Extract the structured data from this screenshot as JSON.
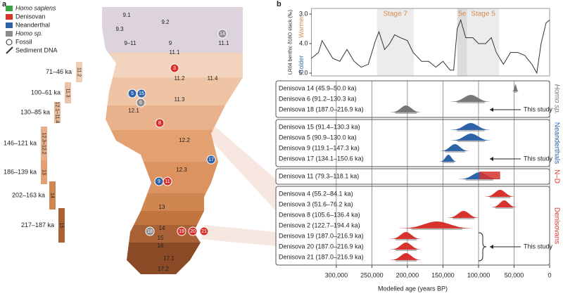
{
  "panel_a": {
    "label": "a",
    "legend": [
      {
        "label": "Homo sapiens",
        "color": "#3aa542"
      },
      {
        "label": "Denisovan",
        "color": "#d7322d"
      },
      {
        "label": "Neanderthal",
        "color": "#2e63a8"
      },
      {
        "label": "Homo sp.",
        "color": "#8c8c8c"
      },
      {
        "label": "Fossil"
      },
      {
        "label": "Sediment DNA"
      }
    ],
    "age_ranges": [
      {
        "age": "71–46 ka",
        "layer": "11.2",
        "color": "#f0cdb5"
      },
      {
        "age": "100–61 ka",
        "layer": "11.3",
        "color": "#ecc3a6"
      },
      {
        "age": "130–85 ka",
        "layer": "12.1–11.4",
        "color": "#e9b998"
      },
      {
        "age": "146–121 ka",
        "layer": "12.3–12.2",
        "color": "#e6ad86"
      },
      {
        "age": "186–139 ka",
        "layer": "13",
        "color": "#e3a073"
      },
      {
        "age": "202–163 ka",
        "layer": "14",
        "color": "#cf8752"
      },
      {
        "age": "217–187 ka",
        "layer": "15",
        "color": "#a86235"
      }
    ],
    "layers": [
      "9.1",
      "9.2",
      "9.3",
      "9–11",
      "9",
      "11.1",
      "11.1",
      "11.2",
      "11.4",
      "11.3",
      "12.1",
      "12.2",
      "12.3",
      "13",
      "14",
      "15",
      "16",
      "17.1",
      "17.2"
    ],
    "specimens": [
      {
        "label": "14",
        "color": "#8c8c8c"
      },
      {
        "label": "3",
        "color": "#d7322d"
      },
      {
        "label": "5",
        "color": "#2e63a8"
      },
      {
        "label": "15",
        "color": "#2e63a8"
      },
      {
        "label": "6",
        "color": "#8c8c8c"
      },
      {
        "label": "8",
        "color": "#d7322d"
      },
      {
        "label": "17",
        "color": "#2e63a8"
      },
      {
        "label": "9",
        "color": "#2e63a8"
      },
      {
        "label": "11",
        "color": "#d7322d"
      },
      {
        "label": "18",
        "color": "#8c8c8c"
      },
      {
        "label": "19",
        "color": "#d7322d"
      },
      {
        "label": "20",
        "color": "#d7322d"
      },
      {
        "label": "21",
        "color": "#d7322d"
      }
    ]
  },
  "panel_b": {
    "label": "b",
    "lr04": {
      "type": "line",
      "y_label": "LR04 benthic δ18O stack (‰)",
      "warmer": "Warmer",
      "colder": "Colder",
      "color": "#333333",
      "x": [
        335000,
        325000,
        320000,
        315000,
        305000,
        295000,
        285000,
        275000,
        265000,
        255000,
        245000,
        240000,
        232000,
        225000,
        218000,
        210000,
        200000,
        192000,
        180000,
        170000,
        160000,
        150000,
        140000,
        135000,
        130000,
        125000,
        118000,
        108000,
        100000,
        90000,
        82000,
        75000,
        65000,
        55000,
        45000,
        35000,
        25000,
        18000,
        12000,
        5000,
        0
      ],
      "values": [
        4.5,
        4.3,
        3.9,
        4.1,
        4.5,
        4.6,
        4.2,
        4.6,
        4.8,
        4.7,
        3.9,
        3.6,
        4.2,
        4.0,
        3.7,
        3.8,
        3.9,
        4.3,
        4.6,
        4.6,
        4.8,
        4.6,
        4.9,
        4.9,
        3.5,
        3.2,
        3.8,
        3.8,
        4.0,
        4.0,
        3.8,
        4.3,
        4.7,
        4.3,
        4.3,
        4.4,
        4.7,
        5.0,
        4.0,
        3.3,
        3.2
      ],
      "ylim": [
        3,
        5
      ],
      "yticks": [
        {
          "value": 3,
          "label": "3.0"
        },
        {
          "value": 4,
          "label": "4.0"
        },
        {
          "value": 5,
          "label": "5.0"
        }
      ],
      "stages": [
        {
          "label": "Stage 7",
          "range": [
            243000,
            191000
          ]
        },
        {
          "label": "5e",
          "range": [
            130000,
            116000
          ]
        },
        {
          "label": "Stage 5",
          "range": [
            116000,
            71000
          ]
        }
      ]
    },
    "chart": {
      "type": "density",
      "x_label": "Modelled age (years BP)",
      "xlim": [
        385000,
        0
      ],
      "xticks": [
        {
          "value": 300000,
          "label": "300,000"
        },
        {
          "value": 250000,
          "label": "250,000"
        },
        {
          "value": 200000,
          "label": "200,000"
        },
        {
          "value": 150000,
          "label": "150,000"
        },
        {
          "value": 100000,
          "label": "100,000"
        },
        {
          "value": 50000,
          "label": "50,000"
        },
        0
      ],
      "groups": [
        {
          "name": "Homo sp.",
          "colors": [
            "#777777"
          ],
          "rows": [
            {
              "name": "Denisova 14 (45.9–50.0 ka)",
              "interval": [
                45900,
                50000
              ]
            },
            {
              "name": "Denisova 6 (91.2–130.3 ka)",
              "interval": [
                91200,
                130300
              ]
            },
            {
              "name": "Denisova 18 (187.0–216.9 ka)",
              "interval": [
                187000,
                216900
              ],
              "note": "This study"
            }
          ]
        },
        {
          "name": "Neanderthals",
          "colors": [
            "#2e63a8"
          ],
          "rows": [
            {
              "name": "Denisova 15 (91.4–130.3 ka)",
              "interval": [
                91400,
                130300
              ]
            },
            {
              "name": "Denisova 5 (90.9–130.0 ka)",
              "interval": [
                90900,
                130000
              ]
            },
            {
              "name": "Denisova 9 (119.1–147.3 ka)",
              "interval": [
                119100,
                147300
              ]
            },
            {
              "name": "Denisova 17 (134.1–150.6 ka)",
              "interval": [
                134100,
                150600
              ],
              "note": "This study"
            }
          ]
        },
        {
          "name": "N–D",
          "colors": [
            "#2e63a8",
            "#d7322d"
          ],
          "rows": [
            {
              "name": "Denisova 11 (79.3–118.1 ka)",
              "interval": [
                79300,
                118100
              ]
            }
          ]
        },
        {
          "name": "Denisovans",
          "colors": [
            "#d7322d"
          ],
          "rows": [
            {
              "name": "Denisova 4 (55.2–84.1 ka)",
              "interval": [
                55200,
                84100
              ]
            },
            {
              "name": "Denisova 3 (51.6–76.2 ka)",
              "interval": [
                51600,
                76200
              ]
            },
            {
              "name": "Denisova 8 (105.6–136.4 ka)",
              "interval": [
                105600,
                136400
              ]
            },
            {
              "name": "Denisova 2 (122.7–194.4 ka)",
              "interval": [
                122700,
                194400
              ]
            },
            {
              "name": "Denisova 19 (187.0–216.9 ka)",
              "interval": [
                187000,
                216900
              ]
            },
            {
              "name": "Denisova 20 (187.0–216.9 ka)",
              "interval": [
                187000,
                216900
              ],
              "note": "This study"
            },
            {
              "name": "Denisova 21 (187.0–216.9 ka)",
              "interval": [
                187000,
                216900
              ]
            }
          ]
        }
      ]
    }
  }
}
